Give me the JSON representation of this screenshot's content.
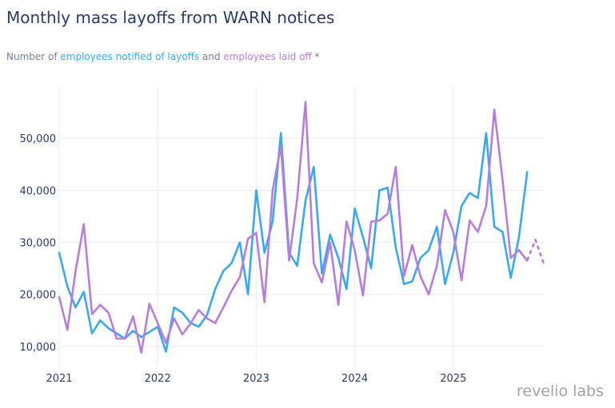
{
  "title": "Monthly mass layoffs from WARN notices",
  "subtitle": {
    "prefix": "Number of ",
    "series1": "employees notified of layoffs",
    "middle": " and ",
    "series2": "employees laid off",
    "suffix": " *"
  },
  "logo": "revelio labs",
  "colors": {
    "notified": "#3aa8ee",
    "laid_off": "#b77ddb",
    "grid": "#ececf2",
    "text": "#2b3a67"
  },
  "chart_data": {
    "type": "line",
    "title": "Monthly mass layoffs from WARN notices",
    "xlabel": "",
    "ylabel": "",
    "x_start": "2021-01",
    "x_ticks": [
      "2021",
      "2022",
      "2023",
      "2024",
      "2025"
    ],
    "y_ticks": [
      10000,
      20000,
      30000,
      40000,
      50000
    ],
    "y_tick_labels": [
      "10,000",
      "20,000",
      "30,000",
      "40,000",
      "50,000"
    ],
    "ylim": [
      6000,
      60000
    ],
    "grid": true,
    "series": [
      {
        "name": "employees notified of layoffs",
        "color": "#3aa8ee",
        "values": [
          28000,
          21500,
          17500,
          20500,
          12500,
          15000,
          13500,
          12500,
          11500,
          13000,
          11800,
          12800,
          13800,
          9000,
          17500,
          16500,
          14500,
          13800,
          16000,
          21000,
          24500,
          26000,
          30000,
          20000,
          40000,
          28000,
          34000,
          51000,
          28000,
          25500,
          38000,
          44500,
          24000,
          31500,
          27000,
          21000,
          36500,
          31000,
          25000,
          40000,
          40500,
          29000,
          22000,
          22500,
          27000,
          28500,
          33000,
          22000,
          28000,
          37000,
          39500,
          38500,
          51000,
          33000,
          32000,
          23200,
          31000,
          43500
        ]
      },
      {
        "name": "employees laid off",
        "color": "#b77ddb",
        "values": [
          19500,
          13200,
          24500,
          33500,
          16200,
          18000,
          16500,
          11500,
          11500,
          15800,
          8800,
          18200,
          14500,
          10700,
          15400,
          12300,
          14400,
          17000,
          15400,
          14500,
          17500,
          20700,
          23300,
          30700,
          31800,
          18500,
          40000,
          48500,
          26500,
          38500,
          57000,
          26000,
          22300,
          30000,
          18000,
          34000,
          28500,
          19800,
          34000,
          34200,
          35500,
          44500,
          23500,
          29500,
          23500,
          20000,
          25500,
          36200,
          32000,
          22700,
          34200,
          32000,
          37000,
          55500,
          42000,
          27000,
          28500,
          26500
        ],
        "projected_values": [
          null,
          null,
          null,
          null,
          null,
          null,
          null,
          null,
          null,
          null,
          null,
          null,
          null,
          null,
          null,
          null,
          null,
          null,
          null,
          null,
          null,
          null,
          null,
          null,
          null,
          null,
          null,
          null,
          null,
          null,
          null,
          null,
          null,
          null,
          null,
          null,
          null,
          null,
          null,
          null,
          null,
          null,
          null,
          null,
          null,
          null,
          null,
          null,
          null,
          null,
          null,
          null,
          null,
          null,
          null,
          null,
          null,
          26500,
          30500,
          26000
        ]
      }
    ]
  }
}
